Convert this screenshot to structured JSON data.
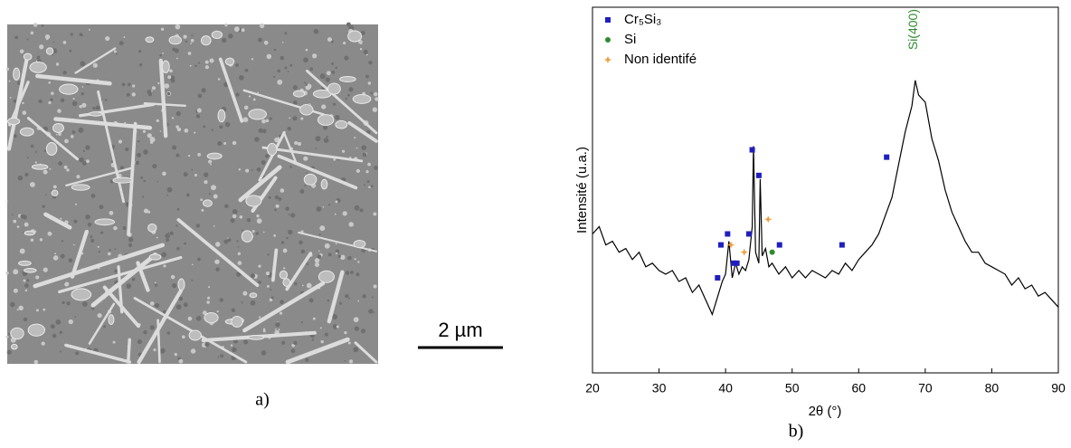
{
  "panel_a": {
    "scale_bar": "2 µm",
    "caption": "a)"
  },
  "chart_data": {
    "type": "line",
    "caption": "b)",
    "xlabel": "2θ (°)",
    "ylabel": "Intensité (u.a.)",
    "xlim": [
      20,
      90
    ],
    "xticks": [
      20,
      30,
      40,
      50,
      60,
      70,
      80,
      90
    ],
    "ylim": [
      0,
      100
    ],
    "color": "#000000",
    "x": [
      20,
      21,
      22,
      23,
      24,
      25,
      26,
      27,
      28,
      29,
      30,
      31,
      32,
      33,
      34,
      35,
      36,
      37,
      38,
      38.5,
      39,
      39.5,
      40,
      40.5,
      41,
      41.5,
      42,
      42.5,
      43,
      43.5,
      44,
      44.2,
      44.5,
      45,
      45.2,
      45.5,
      46,
      46.5,
      47,
      48,
      49,
      50,
      51,
      52,
      53,
      54,
      55,
      56,
      57,
      58,
      59,
      60,
      61,
      62,
      63,
      64,
      65,
      66,
      67,
      68,
      68.5,
      69,
      70,
      71,
      72,
      73,
      74,
      75,
      76,
      77,
      78,
      79,
      80,
      81,
      82,
      83,
      84,
      85,
      86,
      87,
      88,
      89,
      90
    ],
    "values": [
      38,
      40,
      35,
      36,
      33,
      34,
      31,
      33,
      29,
      30,
      28,
      27,
      28,
      25,
      26,
      22,
      24,
      20,
      16,
      19,
      22,
      25,
      27,
      36,
      26,
      30,
      27,
      29,
      28,
      31,
      40,
      62,
      33,
      30,
      53,
      32,
      34,
      29,
      30,
      27,
      29,
      26,
      28,
      26,
      28,
      27,
      26,
      28,
      27,
      30,
      28,
      31,
      33,
      35,
      38,
      43,
      48,
      57,
      66,
      73,
      80,
      76,
      74,
      64,
      58,
      50,
      44,
      40,
      36,
      33,
      33,
      30,
      29,
      28,
      27,
      24,
      26,
      23,
      24,
      21,
      22,
      20,
      18
    ],
    "markers": [
      {
        "name": "Cr₅Si₃",
        "color": "#1f1fbf",
        "shape": "square",
        "x": [
          38.8,
          39.3,
          40.3,
          41.2,
          41.7,
          43.5,
          44.0,
          45.0,
          48.1,
          57.5,
          64.2
        ],
        "values": [
          26,
          35,
          38,
          30,
          30,
          38,
          61,
          54,
          35,
          35,
          59
        ]
      },
      {
        "name": "Si",
        "color": "#2e8b2e",
        "shape": "circle",
        "x": [
          47.0
        ],
        "values": [
          33
        ]
      },
      {
        "name": "Non identifé",
        "color": "#f0a040",
        "shape": "star",
        "x": [
          40.8,
          42.8,
          46.4
        ],
        "values": [
          35,
          33,
          42
        ]
      }
    ],
    "annotation": {
      "text": "Si(400)",
      "x": 68.3,
      "color": "#2e8b2e"
    }
  }
}
